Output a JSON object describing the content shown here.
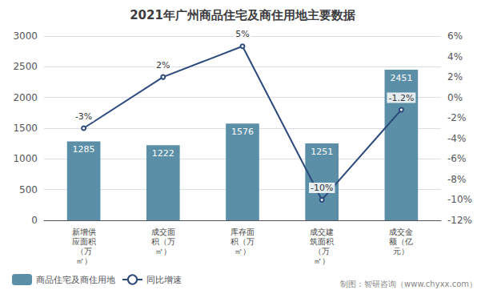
{
  "chart_data": {
    "type": "bar",
    "title": "2021年广州商品住宅及商住用地主要数据",
    "categories": [
      "新增供\n应面积\n（万\n㎡）",
      "成交面\n积（万\n㎡）",
      "库存面\n积（万\n㎡）",
      "成交建\n筑面积\n（万\n㎡）",
      "成交金\n额（亿\n元）"
    ],
    "series": [
      {
        "name": "商品住宅及商住用地",
        "type": "bar",
        "color": "#5b8fa8",
        "values": [
          1285,
          1222,
          1576,
          1251,
          2451
        ]
      },
      {
        "name": "同比增速",
        "type": "line",
        "axis": "y2",
        "color": "#2c4a7c",
        "values": [
          -3,
          2,
          5,
          -10,
          -1.2
        ],
        "value_labels": [
          "-3%",
          "2%",
          "5%",
          "-10%",
          "-1.2%"
        ]
      }
    ],
    "ylim": [
      0,
      3000
    ],
    "yticks": [
      0,
      500,
      1000,
      1500,
      2000,
      2500,
      3000
    ],
    "y2lim": [
      -12,
      6
    ],
    "y2ticks": [
      {
        "value": -12,
        "label": "-12%"
      },
      {
        "value": -10,
        "label": "-10%"
      },
      {
        "value": -8,
        "label": "-8%"
      },
      {
        "value": -6,
        "label": "-6%"
      },
      {
        "value": -4,
        "label": "-4%"
      },
      {
        "value": -2,
        "label": "-2%"
      },
      {
        "value": 0,
        "label": "0%"
      },
      {
        "value": 2,
        "label": "2%"
      },
      {
        "value": 4,
        "label": "4%"
      },
      {
        "value": 6,
        "label": "6%"
      }
    ],
    "grid": true,
    "legend": "bottom",
    "data_labels": true,
    "annotations": [
      "制图：智研咨询（www.chyxx.com）"
    ]
  }
}
